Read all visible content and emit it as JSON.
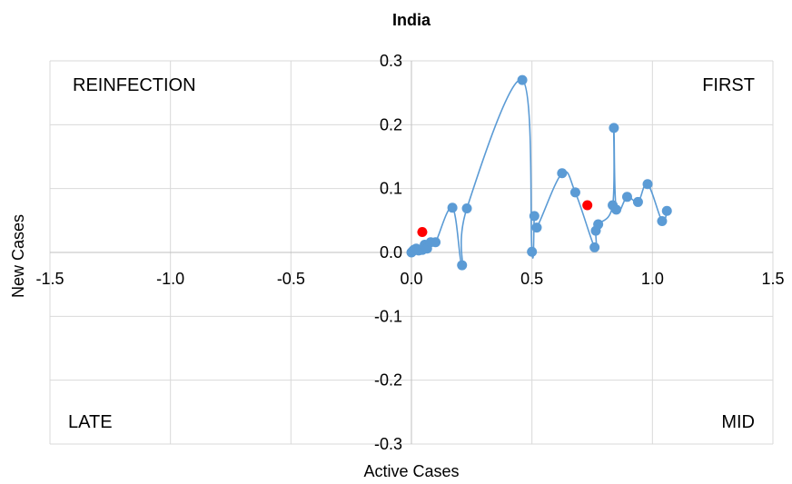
{
  "chart_data": {
    "type": "scatter",
    "title": "India",
    "xlabel": "Active Cases",
    "ylabel": "New Cases",
    "xlim": [
      -1.5,
      1.5
    ],
    "ylim": [
      -0.3,
      0.3
    ],
    "x_ticks": [
      "-1.5",
      "-1.0",
      "-0.5",
      "0.0",
      "0.5",
      "1.0",
      "1.5"
    ],
    "y_ticks": [
      "0.3",
      "0.2",
      "0.1",
      "0.0",
      "-0.1",
      "-0.2",
      "-0.3"
    ],
    "grid": true,
    "legend": "none",
    "quadrant_labels": {
      "top_left": "REINFECTION",
      "top_right": "FIRST",
      "bottom_left": "LATE",
      "bottom_right": "MID"
    },
    "series": [
      {
        "color": "#5b9bd5",
        "line": "smooth",
        "points": [
          [
            0.0,
            0.0
          ],
          [
            0.005,
            0.002
          ],
          [
            0.01,
            0.004
          ],
          [
            0.02,
            0.006
          ],
          [
            0.03,
            0.003
          ],
          [
            0.045,
            0.004
          ],
          [
            0.055,
            0.012
          ],
          [
            0.065,
            0.006
          ],
          [
            0.08,
            0.016
          ],
          [
            0.1,
            0.016
          ],
          [
            0.17,
            0.07
          ],
          [
            0.21,
            -0.02
          ],
          [
            0.23,
            0.069
          ],
          [
            0.46,
            0.27
          ],
          [
            0.5,
            0.001
          ],
          [
            0.51,
            0.057
          ],
          [
            0.52,
            0.039
          ],
          [
            0.625,
            0.124
          ],
          [
            0.68,
            0.094
          ],
          [
            0.76,
            0.008
          ],
          [
            0.765,
            0.034
          ],
          [
            0.775,
            0.044
          ],
          [
            0.835,
            0.074
          ],
          [
            0.84,
            0.195
          ],
          [
            0.85,
            0.067
          ],
          [
            0.895,
            0.087
          ],
          [
            0.94,
            0.079
          ],
          [
            0.98,
            0.107
          ],
          [
            1.04,
            0.049
          ],
          [
            1.06,
            0.065
          ]
        ]
      }
    ],
    "highlight_points": {
      "color": "#ff0000",
      "points": [
        [
          0.045,
          0.032
        ],
        [
          0.73,
          0.074
        ]
      ]
    }
  }
}
